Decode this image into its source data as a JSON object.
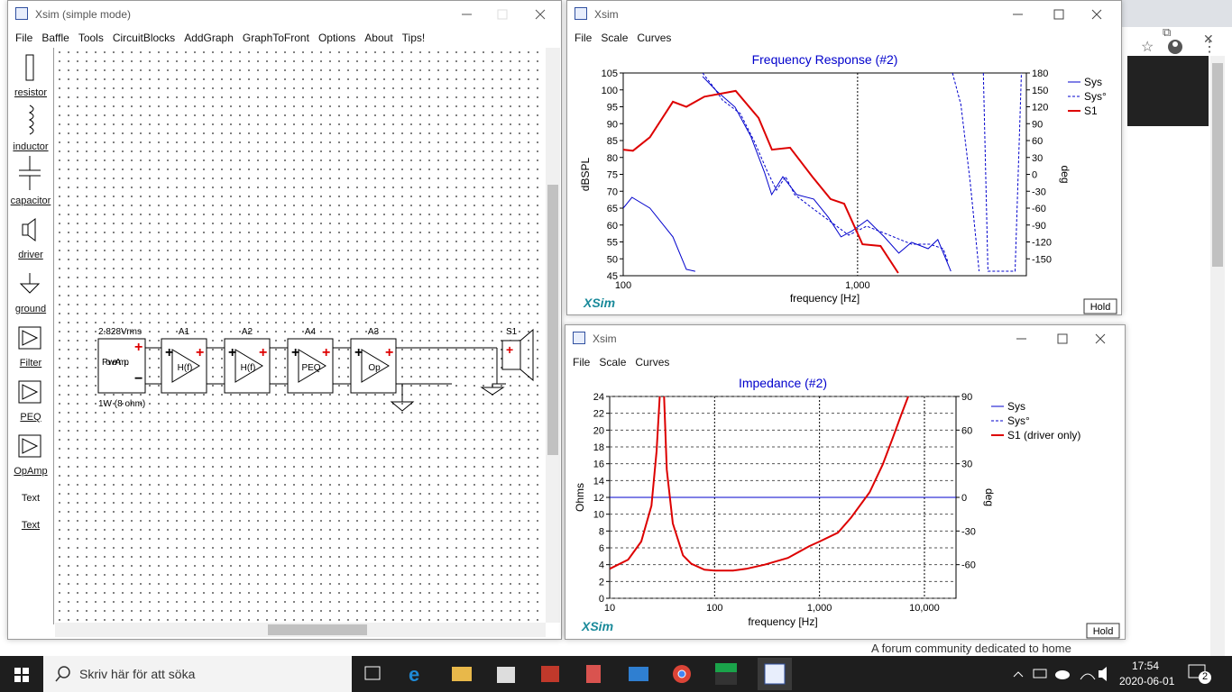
{
  "browser": {
    "footer_text": "A forum community dedicated to home"
  },
  "main_window": {
    "title": "Xsim (simple mode)",
    "menu": [
      "File",
      "Baffle",
      "Tools",
      "CircuitBlocks",
      "AddGraph",
      "GraphToFront",
      "Options",
      "About",
      "Tips!"
    ],
    "tools": [
      "resistor",
      "inductor",
      "capacitor",
      "driver",
      "ground",
      "Filter",
      "PEQ",
      "OpAmp",
      "Text",
      "Text"
    ],
    "circuit": {
      "source_label": "2.828Vrms",
      "source_name": "Power Amp.",
      "source_rating": "1W (8 ohm)",
      "blocks": [
        {
          "id": "A1",
          "label": "H(f)"
        },
        {
          "id": "A2",
          "label": "H(f)"
        },
        {
          "id": "A4",
          "label": "PEQ"
        },
        {
          "id": "A3",
          "label": "Op"
        }
      ],
      "driver": "S1"
    }
  },
  "graph_windows": [
    {
      "title": "Xsim",
      "menu": [
        "File",
        "Scale",
        "Curves"
      ],
      "brand": "XSim",
      "button": "Hold",
      "chart_data": {
        "type": "line",
        "title": "Frequency Response (#2)",
        "x_label": "frequency [Hz]",
        "y_label": "dBSPL",
        "y2_label": "deg",
        "x_log": true,
        "xlim": [
          100,
          5250
        ],
        "xticks": [
          100,
          {
            "value": 1000,
            "label": "1,000"
          }
        ],
        "ylim": [
          45,
          105
        ],
        "yticks": [
          45,
          50,
          55,
          60,
          65,
          70,
          75,
          80,
          85,
          90,
          95,
          100,
          105
        ],
        "y2lim": [
          -180,
          180
        ],
        "y2ticks": [
          -150,
          -120,
          -90,
          -60,
          -30,
          0,
          30,
          60,
          90,
          120,
          150,
          180
        ],
        "xgrid": true,
        "ygrid": false,
        "series": [
          {
            "name": "Sys",
            "color": "#0000cc",
            "dashed": false,
            "width": 1,
            "x": [
              100,
              109,
              130,
              163,
              186,
              203,
              210,
              218,
              250,
              300,
              350,
              400,
              430,
              480,
              550,
              650,
              750,
              850,
              950,
              1100,
              1300,
              1500,
              1700,
              2000,
              2200,
              2500
            ],
            "values": [
              65,
              68.2,
              65,
              56.5,
              46.9,
              46.3,
              null,
              104,
              99.7,
              94.9,
              86.3,
              75.7,
              69,
              74.3,
              69,
              67.7,
              62.3,
              56.5,
              58.3,
              61.5,
              56.5,
              51.7,
              54.9,
              53,
              55.7,
              46.3
            ]
          },
          {
            "name": "Sys°",
            "color": "#0000cc",
            "dashed": true,
            "width": 1,
            "axis": "y2",
            "x": [
              218,
              242,
              265,
              316,
              361,
              413,
              451,
              493,
              539,
              641,
              767,
              916,
              1094,
              1425,
              1700,
              2030,
              2320,
              2430,
              2480,
              2540,
              2760,
              3020,
              3300,
              3380,
              3440,
              3600,
              4700,
              5000
            ],
            "values": [
              180,
              156,
              132,
              108,
              60,
              4,
              -28,
              -4,
              -36,
              -60,
              -84,
              -108,
              -92,
              -111,
              -124,
              -124,
              -132,
              -156,
              null,
              180,
              124,
              -12,
              -172,
              null,
              180,
              -172,
              -172,
              180
            ]
          },
          {
            "name": "S1",
            "color": "#dd0000",
            "dashed": false,
            "width": 2,
            "x": [
              100,
              110,
              130,
              163,
              186,
              222,
              302,
              378,
              431,
              515,
              641,
              767,
              877,
              1049,
              1253,
              1490
            ],
            "values": [
              82.3,
              82,
              86,
              96.5,
              95,
              98,
              99.7,
              91.7,
              82.3,
              82.9,
              74.3,
              67.7,
              66.3,
              54.3,
              53.8,
              45.8
            ]
          }
        ]
      }
    },
    {
      "title": "Xsim",
      "menu": [
        "File",
        "Scale",
        "Curves"
      ],
      "brand": "XSim",
      "button": "Hold",
      "chart_data": {
        "type": "line",
        "title": "Impedance (#2)",
        "x_label": "frequency [Hz]",
        "y_label": "Ohms",
        "y2_label": "deg",
        "x_log": true,
        "xlim": [
          10,
          20000
        ],
        "xticks": [
          10,
          100,
          {
            "value": 1000,
            "label": "1,000"
          },
          {
            "value": 10000,
            "label": "10,000"
          }
        ],
        "ylim": [
          0,
          24
        ],
        "yticks": [
          0,
          2,
          4,
          6,
          8,
          10,
          12,
          14,
          16,
          18,
          20,
          22,
          24
        ],
        "y2lim": [
          -90,
          90
        ],
        "y2ticks": [
          -60,
          -30,
          0,
          30,
          60,
          90
        ],
        "xgrid": true,
        "ygrid": true,
        "series": [
          {
            "name": "Sys",
            "color": "#0000cc",
            "dashed": false,
            "width": 1,
            "x": [
              10,
              20000
            ],
            "values": [
              12,
              12
            ]
          },
          {
            "name": "Sys°",
            "color": "#0000cc",
            "dashed": true,
            "width": 1,
            "axis": "y2",
            "x": [
              10,
              20000
            ],
            "values": [
              0,
              0
            ]
          },
          {
            "name": "S1 (driver only)",
            "color": "#dd0000",
            "dashed": false,
            "width": 2,
            "x": [
              10,
              15,
              20,
              25,
              28,
              30,
              31.5,
              33,
              35,
              40,
              50,
              60,
              80,
              100,
              150,
              200,
              300,
              500,
              800,
              1000,
              1500,
              2000,
              3000,
              4000,
              5000,
              6000,
              7000
            ],
            "values": [
              3.5,
              4.6,
              6.75,
              11,
              17.5,
              24,
              null,
              24,
              15.3,
              8.9,
              5.1,
              4.1,
              3.4,
              3.3,
              3.3,
              3.5,
              4,
              4.8,
              6.2,
              6.75,
              7.8,
              9.6,
              12.6,
              15.9,
              19.1,
              21.8,
              24
            ]
          }
        ]
      }
    }
  ],
  "taskbar": {
    "search": "Skriv här för att söka",
    "time": "17:54",
    "date": "2020-06-01",
    "notifications": "2"
  }
}
